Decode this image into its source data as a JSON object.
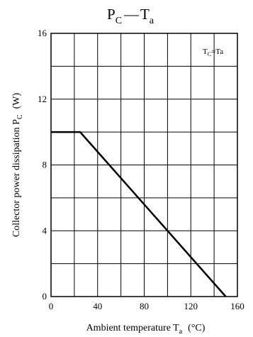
{
  "chart_data": {
    "type": "line",
    "title": {
      "main": "P",
      "main_sub": "C",
      "dash": "—",
      "var": "T",
      "var_sub": "a"
    },
    "xlabel": {
      "text": "Ambient temperature  T",
      "sub": "a",
      "unit": "(°C)"
    },
    "ylabel": {
      "text": "Collector power dissipation  P",
      "sub": "C",
      "unit": "(W)"
    },
    "annotation": {
      "pre": "T",
      "sub": "C",
      "post": "=Ta"
    },
    "xlim": [
      0,
      160
    ],
    "ylim": [
      0,
      16
    ],
    "x_ticks": [
      0,
      40,
      80,
      120,
      160
    ],
    "y_ticks": [
      0,
      4,
      8,
      12,
      16
    ],
    "x_grid_step": 20,
    "y_grid_step": 2,
    "grid": true,
    "series": [
      {
        "x": [
          0,
          25,
          150
        ],
        "y": [
          10,
          10,
          0
        ]
      }
    ],
    "colors": {
      "line": "#000000",
      "grid": "#000000"
    }
  }
}
